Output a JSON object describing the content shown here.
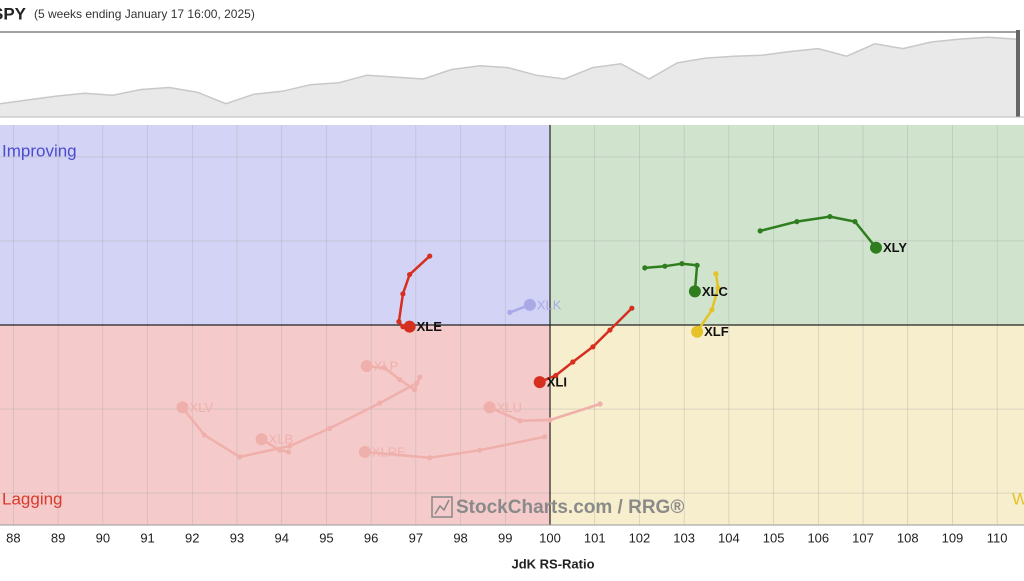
{
  "header": {
    "symbol": "SPY",
    "subtitle": "(5 weeks ending January 17 16:00, 2025)"
  },
  "price_panel": {
    "type": "area",
    "color": "#c8c8c8",
    "fill": "#e9e9e9",
    "ylim": [
      0,
      100
    ],
    "values": [
      14,
      18,
      22,
      25,
      23,
      29,
      31,
      26,
      14,
      24,
      27,
      34,
      36,
      44,
      42,
      40,
      50,
      54,
      52,
      44,
      40,
      52,
      56,
      40,
      57,
      62,
      64,
      65,
      69,
      72,
      64,
      77,
      72,
      79,
      82,
      84,
      82
    ]
  },
  "chart_data": {
    "type": "rrg",
    "x_label": "JdK RS-Ratio",
    "watermark": "StockCharts.com / RRG®",
    "xlim": [
      87.7,
      110.6
    ],
    "xticks": [
      88,
      89,
      90,
      91,
      92,
      93,
      94,
      95,
      96,
      97,
      98,
      99,
      100,
      101,
      102,
      103,
      104,
      105,
      106,
      107,
      108,
      109,
      110
    ],
    "ylim": [
      97.62,
      102.38
    ],
    "yticks": [
      98,
      99,
      100,
      101,
      102
    ],
    "grid": true,
    "quadrants": {
      "improving": {
        "label": "Improving",
        "color": "#d3d3f5",
        "text_color": "#4b4bd0"
      },
      "leading": {
        "color": "#d0e4cd"
      },
      "lagging": {
        "label": "Lagging",
        "color": "#f5caca",
        "text_color": "#d93a2b"
      },
      "weakening": {
        "label": "W",
        "color": "#f7eecd",
        "text_color": "#e6c229"
      }
    },
    "series": [
      {
        "name": "XLV",
        "color": "#efb0ab",
        "x": [
          97.02,
          96.19,
          95.07,
          94.18,
          93.06,
          92.27,
          91.78
        ],
        "y": [
          99.31,
          99.07,
          98.77,
          98.56,
          98.43,
          98.69,
          99.02
        ]
      },
      {
        "name": "XLB",
        "color": "#efb0ab",
        "x": [
          94.15,
          93.95,
          93.55
        ],
        "y": [
          98.49,
          98.51,
          98.64
        ]
      },
      {
        "name": "XLRE",
        "color": "#efb0ab",
        "x": [
          99.88,
          98.43,
          97.31,
          95.86
        ],
        "y": [
          98.67,
          98.51,
          98.42,
          98.49
        ]
      },
      {
        "name": "XLP",
        "color": "#efb0ab",
        "x": [
          97.09,
          96.97,
          96.64,
          96.3,
          95.9
        ],
        "y": [
          99.38,
          99.23,
          99.35,
          99.49,
          99.51
        ]
      },
      {
        "name": "XLU",
        "color": "#efb0ab",
        "x": [
          101.12,
          100.0,
          99.33,
          98.65
        ],
        "y": [
          99.06,
          98.87,
          98.86,
          99.02
        ]
      },
      {
        "name": "XLK",
        "color": "#a9a9e8",
        "x": [
          99.1,
          99.55
        ],
        "y": [
          100.15,
          100.24
        ]
      },
      {
        "name": "XLE",
        "color": "#d62f1f",
        "x": [
          97.31,
          96.86,
          96.71,
          96.62,
          96.71,
          96.86
        ],
        "y": [
          100.82,
          100.6,
          100.37,
          100.04,
          99.98,
          99.98
        ]
      },
      {
        "name": "XLI",
        "color": "#d62f1f",
        "x": [
          101.83,
          101.34,
          100.96,
          100.51,
          100.13,
          99.77
        ],
        "y": [
          100.2,
          99.94,
          99.74,
          99.56,
          99.4,
          99.32
        ]
      },
      {
        "name": "XLF",
        "color": "#e6c229",
        "x": [
          103.71,
          103.76,
          103.62,
          103.29
        ],
        "y": [
          100.61,
          100.44,
          100.18,
          99.92
        ]
      },
      {
        "name": "XLC",
        "color": "#2e7d1e",
        "x": [
          102.12,
          102.57,
          102.95,
          103.29,
          103.24
        ],
        "y": [
          100.68,
          100.7,
          100.73,
          100.71,
          100.4
        ]
      },
      {
        "name": "XLY",
        "color": "#2e7d1e",
        "x": [
          104.7,
          105.52,
          106.26,
          106.82,
          107.29
        ],
        "y": [
          101.12,
          101.23,
          101.29,
          101.23,
          100.92
        ]
      }
    ]
  }
}
